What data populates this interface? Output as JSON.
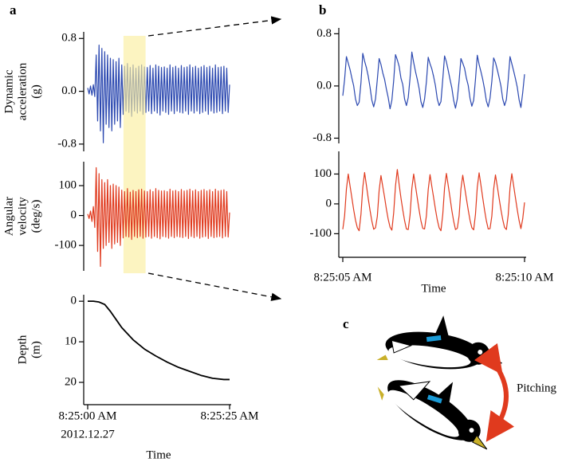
{
  "chart_data": [
    {
      "type": "line",
      "panel_label": "a",
      "ylabel": [
        "Dynamic",
        "acceleration",
        "(g)"
      ],
      "color": "#2b48b0",
      "xlim": [
        0,
        25
      ],
      "ylim": [
        -0.91,
        0.9
      ],
      "yticks": [
        0.8,
        {
          "value": 0,
          "label": "0.0"
        },
        -0.8
      ],
      "highlight": [
        6.3,
        10.2
      ],
      "highlight_color": "#fbeea0",
      "x": [
        0,
        0.25,
        0.5,
        0.75,
        1,
        1.25,
        1.5,
        1.75,
        2,
        2.25,
        2.5,
        2.75,
        3,
        3.25,
        3.5,
        3.75,
        4,
        4.25,
        4.5,
        4.75,
        5,
        5.25,
        5.5,
        5.75,
        6,
        6.25,
        6.5,
        6.75,
        7,
        7.25,
        7.5,
        7.75,
        8,
        8.25,
        8.5,
        8.75,
        9,
        9.25,
        9.5,
        9.75,
        10,
        10.25,
        10.5,
        10.75,
        11,
        11.25,
        11.5,
        11.75,
        12,
        12.25,
        12.5,
        12.75,
        13,
        13.25,
        13.5,
        13.75,
        14,
        14.25,
        14.5,
        14.75,
        15,
        15.25,
        15.5,
        15.75,
        16,
        16.25,
        16.5,
        16.75,
        17,
        17.25,
        17.5,
        17.75,
        18,
        18.25,
        18.5,
        18.75,
        19,
        19.25,
        19.5,
        19.75,
        20,
        20.25,
        20.5,
        20.75,
        21,
        21.25,
        21.5,
        21.75,
        22,
        22.25,
        22.5,
        22.75,
        23,
        23.25,
        23.5,
        23.75,
        24,
        24.25,
        24.5,
        24.75,
        25
      ],
      "values": [
        0.05,
        -0.04,
        0.08,
        -0.06,
        0.1,
        -0.08,
        0.55,
        -0.45,
        0.7,
        -0.6,
        0.65,
        -0.78,
        0.6,
        -0.5,
        0.55,
        -0.55,
        0.5,
        -0.6,
        0.48,
        -0.5,
        0.45,
        -0.45,
        0.5,
        -0.55,
        0.4,
        -0.35,
        0.38,
        -0.3,
        0.42,
        -0.32,
        0.36,
        -0.38,
        0.4,
        -0.3,
        0.35,
        -0.33,
        0.38,
        -0.3,
        0.4,
        -0.35,
        0.37,
        -0.32,
        0.36,
        -0.3,
        0.39,
        -0.34,
        0.35,
        -0.3,
        0.4,
        -0.33,
        0.38,
        -0.36,
        0.36,
        -0.3,
        0.37,
        -0.32,
        0.35,
        -0.35,
        0.4,
        -0.3,
        0.36,
        -0.34,
        0.38,
        -0.3,
        0.35,
        -0.32,
        0.39,
        -0.33,
        0.36,
        -0.3,
        0.37,
        -0.35,
        0.4,
        -0.3,
        0.36,
        -0.33,
        0.38,
        -0.3,
        0.35,
        -0.34,
        0.37,
        -0.32,
        0.39,
        -0.3,
        0.36,
        -0.35,
        0.38,
        -0.3,
        0.35,
        -0.33,
        0.4,
        -0.32,
        0.36,
        -0.3,
        0.37,
        -0.34,
        0.38,
        -0.3,
        0.35,
        -0.32,
        0.1
      ]
    },
    {
      "type": "line",
      "ylabel": [
        "Angular",
        "velocity",
        "(deg/s)"
      ],
      "color": "#e03a1e",
      "xlim": [
        0,
        25
      ],
      "ylim": [
        -185,
        180
      ],
      "yticks": [
        100,
        0,
        -100
      ],
      "x": [
        0,
        0.25,
        0.5,
        0.75,
        1,
        1.25,
        1.5,
        1.75,
        2,
        2.25,
        2.5,
        2.75,
        3,
        3.25,
        3.5,
        3.75,
        4,
        4.25,
        4.5,
        4.75,
        5,
        5.25,
        5.5,
        5.75,
        6,
        6.25,
        6.5,
        6.75,
        7,
        7.25,
        7.5,
        7.75,
        8,
        8.25,
        8.5,
        8.75,
        9,
        9.25,
        9.5,
        9.75,
        10,
        10.25,
        10.5,
        10.75,
        11,
        11.25,
        11.5,
        11.75,
        12,
        12.25,
        12.5,
        12.75,
        13,
        13.25,
        13.5,
        13.75,
        14,
        14.25,
        14.5,
        14.75,
        15,
        15.25,
        15.5,
        15.75,
        16,
        16.25,
        16.5,
        16.75,
        17,
        17.25,
        17.5,
        17.75,
        18,
        18.25,
        18.5,
        18.75,
        19,
        19.25,
        19.5,
        19.75,
        20,
        20.25,
        20.5,
        20.75,
        21,
        21.25,
        21.5,
        21.75,
        22,
        22.25,
        22.5,
        22.75,
        23,
        23.25,
        23.5,
        23.75,
        24,
        24.25,
        24.5,
        24.75,
        25
      ],
      "values": [
        5,
        -10,
        15,
        -20,
        30,
        -40,
        160,
        -120,
        140,
        -170,
        120,
        -110,
        110,
        -100,
        120,
        -90,
        100,
        -110,
        105,
        -95,
        100,
        -90,
        95,
        -100,
        85,
        -75,
        80,
        -70,
        90,
        -72,
        78,
        -80,
        84,
        -70,
        80,
        -74,
        86,
        -70,
        88,
        -76,
        82,
        -72,
        80,
        -70,
        86,
        -76,
        80,
        -70,
        90,
        -74,
        84,
        -78,
        82,
        -70,
        83,
        -72,
        80,
        -76,
        88,
        -70,
        82,
        -74,
        84,
        -70,
        80,
        -72,
        87,
        -74,
        82,
        -70,
        84,
        -77,
        88,
        -70,
        82,
        -74,
        86,
        -70,
        80,
        -76,
        84,
        -72,
        87,
        -70,
        82,
        -77,
        86,
        -70,
        80,
        -74,
        88,
        -72,
        82,
        -70,
        84,
        -75,
        86,
        -70,
        80,
        -72,
        10
      ]
    },
    {
      "type": "line",
      "ylabel": [
        "Depth",
        "(m)"
      ],
      "color": "#000000",
      "xlim": [
        0,
        25
      ],
      "ylim": [
        -1.6,
        25.5
      ],
      "y_inverted": true,
      "yticks": [
        0,
        10,
        20
      ],
      "xticks": [
        {
          "value": 0,
          "label": "8:25:00 AM"
        },
        {
          "value": 25,
          "label": "8:25:25 AM"
        }
      ],
      "date_label": "2012.12.27",
      "xlabel": "Time",
      "x": [
        0,
        1,
        2,
        3,
        4,
        5,
        6,
        8,
        10,
        12,
        14,
        16,
        18,
        20,
        22,
        24,
        25
      ],
      "values": [
        0,
        0,
        0.2,
        0.8,
        2.5,
        4.5,
        6.5,
        9.5,
        11.8,
        13.5,
        15,
        16.3,
        17.3,
        18.3,
        19,
        19.3,
        19.3
      ]
    },
    {
      "type": "line",
      "panel_label": "b",
      "color": "#2b48b0",
      "xlim": [
        5,
        10
      ],
      "ylim": [
        -0.88,
        0.89
      ],
      "yticks": [
        0.8,
        {
          "value": 0,
          "label": "0.0"
        },
        -0.8
      ],
      "x": [
        5,
        5.05,
        5.1,
        5.15,
        5.2,
        5.25,
        5.3,
        5.35,
        5.4,
        5.45,
        5.5,
        5.55,
        5.6,
        5.65,
        5.7,
        5.75,
        5.8,
        5.85,
        5.9,
        5.95,
        6,
        6.05,
        6.1,
        6.15,
        6.2,
        6.25,
        6.3,
        6.35,
        6.4,
        6.45,
        6.5,
        6.55,
        6.6,
        6.65,
        6.7,
        6.75,
        6.8,
        6.85,
        6.9,
        6.95,
        7,
        7.05,
        7.1,
        7.15,
        7.2,
        7.25,
        7.3,
        7.35,
        7.4,
        7.45,
        7.5,
        7.55,
        7.6,
        7.65,
        7.7,
        7.75,
        7.8,
        7.85,
        7.9,
        7.95,
        8,
        8.05,
        8.1,
        8.15,
        8.2,
        8.25,
        8.3,
        8.35,
        8.4,
        8.45,
        8.5,
        8.55,
        8.6,
        8.65,
        8.7,
        8.75,
        8.8,
        8.85,
        8.9,
        8.95,
        9,
        9.05,
        9.1,
        9.15,
        9.2,
        9.25,
        9.3,
        9.35,
        9.4,
        9.45,
        9.5,
        9.55,
        9.6,
        9.65,
        9.7,
        9.75,
        9.8,
        9.85,
        9.9,
        9.95,
        10
      ],
      "values": [
        -0.15,
        0.1,
        0.45,
        0.35,
        0.25,
        0.12,
        0.0,
        -0.2,
        -0.3,
        -0.25,
        0.05,
        0.5,
        0.38,
        0.28,
        0.15,
        -0.02,
        -0.22,
        -0.32,
        -0.2,
        0.1,
        0.42,
        0.33,
        0.2,
        0.1,
        -0.05,
        -0.18,
        -0.35,
        -0.22,
        0.08,
        0.48,
        0.4,
        0.3,
        0.12,
        0.02,
        -0.2,
        -0.3,
        -0.18,
        0.12,
        0.52,
        0.36,
        0.22,
        0.1,
        -0.04,
        -0.24,
        -0.33,
        -0.2,
        0.06,
        0.44,
        0.34,
        0.26,
        0.14,
        0.0,
        -0.2,
        -0.3,
        -0.24,
        0.1,
        0.46,
        0.37,
        0.24,
        0.1,
        -0.03,
        -0.22,
        -0.34,
        -0.2,
        0.08,
        0.42,
        0.35,
        0.27,
        0.12,
        0.01,
        -0.19,
        -0.31,
        -0.22,
        0.1,
        0.47,
        0.33,
        0.22,
        0.1,
        -0.05,
        -0.23,
        -0.32,
        -0.19,
        0.07,
        0.43,
        0.36,
        0.25,
        0.13,
        0.0,
        -0.2,
        -0.3,
        -0.21,
        0.09,
        0.45,
        0.34,
        0.23,
        0.11,
        -0.02,
        -0.21,
        -0.33,
        -0.1,
        0.18
      ]
    },
    {
      "type": "line",
      "color": "#e03a1e",
      "xlim": [
        5,
        10
      ],
      "ylim": [
        -179,
        176
      ],
      "yticks": [
        100,
        0,
        -100
      ],
      "xticks": [
        {
          "value": 5,
          "label": "8:25:05 AM"
        },
        {
          "value": 10,
          "label": "8:25:10 AM"
        }
      ],
      "xlabel": "Time",
      "x": [
        5,
        5.05,
        5.1,
        5.15,
        5.2,
        5.25,
        5.3,
        5.35,
        5.4,
        5.45,
        5.5,
        5.55,
        5.6,
        5.65,
        5.7,
        5.75,
        5.8,
        5.85,
        5.9,
        5.95,
        6,
        6.05,
        6.1,
        6.15,
        6.2,
        6.25,
        6.3,
        6.35,
        6.4,
        6.45,
        6.5,
        6.55,
        6.6,
        6.65,
        6.7,
        6.75,
        6.8,
        6.85,
        6.9,
        6.95,
        7,
        7.05,
        7.1,
        7.15,
        7.2,
        7.25,
        7.3,
        7.35,
        7.4,
        7.45,
        7.5,
        7.55,
        7.6,
        7.65,
        7.7,
        7.75,
        7.8,
        7.85,
        7.9,
        7.95,
        8,
        8.05,
        8.1,
        8.15,
        8.2,
        8.25,
        8.3,
        8.35,
        8.4,
        8.45,
        8.5,
        8.55,
        8.6,
        8.65,
        8.7,
        8.75,
        8.8,
        8.85,
        8.9,
        8.95,
        9,
        9.05,
        9.1,
        9.15,
        9.2,
        9.25,
        9.3,
        9.35,
        9.4,
        9.45,
        9.5,
        9.55,
        9.6,
        9.65,
        9.7,
        9.75,
        9.8,
        9.85,
        9.9,
        9.95,
        10
      ],
      "values": [
        -85,
        -40,
        50,
        100,
        60,
        20,
        -20,
        -55,
        -80,
        -90,
        -35,
        55,
        105,
        62,
        18,
        -22,
        -58,
        -85,
        -80,
        -42,
        45,
        95,
        58,
        22,
        -18,
        -52,
        -78,
        -88,
        -30,
        60,
        115,
        65,
        20,
        -20,
        -56,
        -84,
        -86,
        -38,
        52,
        100,
        60,
        19,
        -21,
        -57,
        -82,
        -84,
        -40,
        48,
        98,
        58,
        20,
        -19,
        -54,
        -80,
        -90,
        -36,
        54,
        102,
        62,
        21,
        -22,
        -58,
        -86,
        -82,
        -40,
        50,
        96,
        57,
        18,
        -20,
        -55,
        -80,
        -87,
        -35,
        56,
        104,
        63,
        20,
        -21,
        -57,
        -84,
        -83,
        -41,
        49,
        97,
        59,
        19,
        -19,
        -53,
        -79,
        -86,
        -38,
        53,
        101,
        61,
        20,
        -20,
        -56,
        -83,
        -50,
        5
      ]
    }
  ],
  "illustration": {
    "panel_label": "c",
    "label": "Pitching"
  }
}
